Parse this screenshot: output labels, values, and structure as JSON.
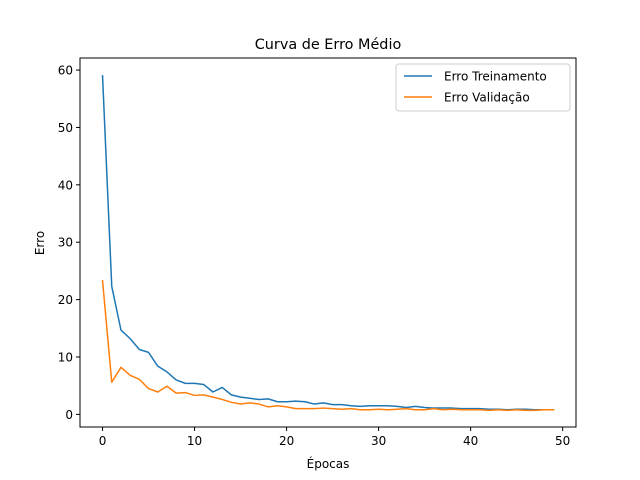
{
  "chart_data": {
    "type": "line",
    "title": "Curva de Erro Médio",
    "xlabel": "Épocas",
    "ylabel": "Erro",
    "xlim": [
      -2.45,
      51.45
    ],
    "ylim": [
      -2.2,
      62.1
    ],
    "xticks": [
      0,
      10,
      20,
      30,
      40,
      50
    ],
    "yticks": [
      0,
      10,
      20,
      30,
      40,
      50,
      60
    ],
    "grid": false,
    "legend_position": "top-right",
    "series": [
      {
        "name": "Erro Treinamento",
        "color": "#1f77b4",
        "x": [
          0,
          1,
          2,
          3,
          4,
          5,
          6,
          7,
          8,
          9,
          10,
          11,
          12,
          13,
          14,
          15,
          16,
          17,
          18,
          19,
          20,
          21,
          22,
          23,
          24,
          25,
          26,
          27,
          28,
          29,
          30,
          31,
          32,
          33,
          34,
          35,
          36,
          37,
          38,
          39,
          40,
          41,
          42,
          43,
          44,
          45,
          46,
          47,
          48,
          49
        ],
        "values": [
          59.0,
          22.3,
          14.7,
          13.2,
          11.3,
          10.8,
          8.4,
          7.4,
          6.0,
          5.4,
          5.4,
          5.2,
          3.9,
          4.7,
          3.4,
          3.0,
          2.8,
          2.6,
          2.7,
          2.2,
          2.2,
          2.3,
          2.2,
          1.8,
          2.0,
          1.7,
          1.7,
          1.5,
          1.4,
          1.5,
          1.5,
          1.5,
          1.4,
          1.2,
          1.4,
          1.2,
          1.1,
          1.1,
          1.1,
          1.0,
          1.0,
          1.0,
          0.9,
          0.9,
          0.8,
          0.9,
          0.9,
          0.8,
          0.8,
          0.8
        ]
      },
      {
        "name": "Erro Validação",
        "color": "#ff7f0e",
        "x": [
          0,
          1,
          2,
          3,
          4,
          5,
          6,
          7,
          8,
          9,
          10,
          11,
          12,
          13,
          14,
          15,
          16,
          17,
          18,
          19,
          20,
          21,
          22,
          23,
          24,
          25,
          26,
          27,
          28,
          29,
          30,
          31,
          32,
          33,
          34,
          35,
          36,
          37,
          38,
          39,
          40,
          41,
          42,
          43,
          44,
          45,
          46,
          47,
          48,
          49
        ],
        "values": [
          23.3,
          5.6,
          8.2,
          6.8,
          6.1,
          4.5,
          3.9,
          4.9,
          3.7,
          3.8,
          3.3,
          3.4,
          3.0,
          2.6,
          2.1,
          1.8,
          2.0,
          1.8,
          1.3,
          1.5,
          1.3,
          1.0,
          1.0,
          1.0,
          1.1,
          1.0,
          0.9,
          1.0,
          0.8,
          0.8,
          0.9,
          0.8,
          0.9,
          1.0,
          0.8,
          0.8,
          1.0,
          0.8,
          0.9,
          0.8,
          0.8,
          0.8,
          0.7,
          0.8,
          0.7,
          0.8,
          0.7,
          0.7,
          0.8,
          0.8
        ]
      }
    ]
  }
}
